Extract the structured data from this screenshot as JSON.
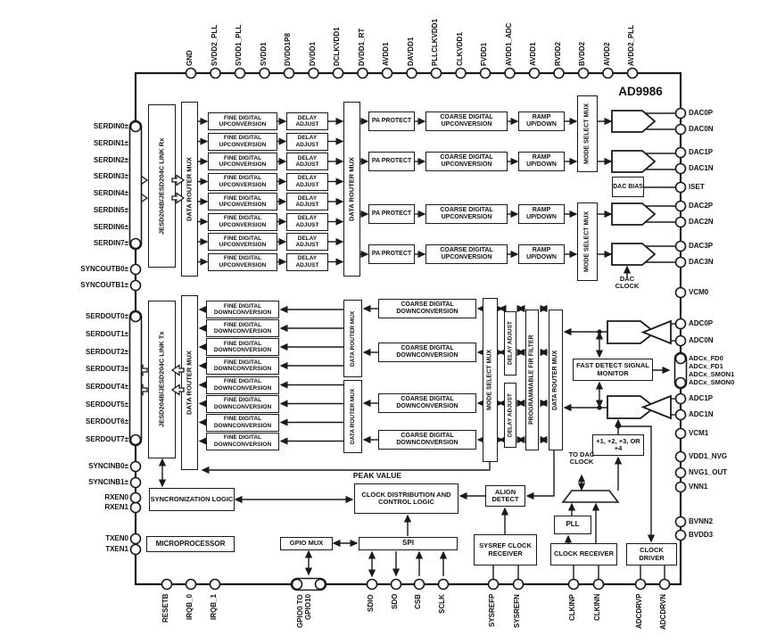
{
  "title": "AD9986",
  "pins": {
    "top": [
      "GND",
      "SVDD2_PLL",
      "SVDD1_PLL",
      "SVDD1",
      "DVDD1P8",
      "DVDD1",
      "DCLKVDD1",
      "DVDD1_RT",
      "AVDD1",
      "DAVDD1",
      "PLLCLKVDD1",
      "CLKVDD1",
      "FVDD1",
      "AVDD1_ADC",
      "AVDD1",
      "RVDD2",
      "BVDD2",
      "AVDD2",
      "AVDD2_PLL"
    ],
    "left_serdin": [
      "SERDIN0±",
      "SERDIN1±",
      "SERDIN2±",
      "SERDIN3±",
      "SERDIN4±",
      "SERDIN5±",
      "SERDIN6±",
      "SERDIN7±"
    ],
    "left_syncout": [
      "SYNCOUTB0±",
      "SYNCOUTB1±"
    ],
    "left_serdout": [
      "SERDOUT0±",
      "SERDOUT1±",
      "SERDOUT2±",
      "SERDOUT3±",
      "SERDOUT4±",
      "SERDOUT5±",
      "SERDOUT6±",
      "SERDOUT7±"
    ],
    "left_syncin": [
      "SYNCINB0±",
      "SYNCINB1±"
    ],
    "left_rxen": [
      "RXEN0",
      "RXEN1"
    ],
    "left_txen": [
      "TXEN0",
      "TXEN1"
    ],
    "bottom": [
      "RESETB",
      "IRQB_0",
      "IRQB_1",
      "GPIO0 TO GPIO10",
      "SDIO",
      "SDO",
      "CSB",
      "SCLK",
      "SYSREFP",
      "SYSREFN",
      "CLKINP",
      "CLKINN",
      "ADCDRVP",
      "ADCDRVN"
    ],
    "right_dac": [
      "DAC0P",
      "DAC0N",
      "DAC1P",
      "DAC1N",
      "ISET",
      "DAC2P",
      "DAC2N",
      "DAC3P",
      "DAC3N",
      "VCM0"
    ],
    "right_adc0": [
      "ADC0P",
      "ADC0N"
    ],
    "right_fd": [
      "ADCx_FD0",
      "ADCx_FD1",
      "ADCx_SMON1",
      "ADCx_SMON0"
    ],
    "right_adc1": [
      "ADC1P",
      "ADC1N"
    ],
    "right_misc": [
      "VCM1",
      "VDD1_NVG",
      "NVG1_OUT",
      "VNN1",
      "BVNN2",
      "BVDD3"
    ]
  },
  "blocks": {
    "jesd_rx": "JESD204B/JESD204C LINK Rx",
    "jesd_tx": "JESD204B/JESD204C LINK Tx",
    "data_router_mux": "DATA ROUTER MUX",
    "fine_duc": "FINE DIGITAL UPCONVERSION",
    "delay_adjust": "DELAY ADJUST",
    "pa_protect": "PA PROTECT",
    "coarse_duc": "COARSE DIGITAL UPCONVERSION",
    "ramp": "RAMP UP/DOWN",
    "mode_select_mux": "MODE SELECT MUX",
    "dac": [
      "DAC0",
      "DAC1",
      "DAC2",
      "DAC3"
    ],
    "dac_bias": "DAC BIAS",
    "fine_ddc": "FINE DIGITAL DOWNCONVERSION",
    "coarse_ddc": "COARSE DIGITAL DOWNCONVERSION",
    "fir": "PROGRAMMABLE FIR FILTER",
    "adc": [
      "ADC0",
      "ADC1"
    ],
    "fast_detect": "FAST DETECT SIGNAL MONITOR",
    "divider": "+1, +2, +3, OR +4",
    "pll": "PLL",
    "clock_receiver": "CLOCK RECEIVER",
    "clock_driver": "CLOCK DRIVER",
    "sysref_receiver": "SYSREF CLOCK RECEIVER",
    "spi": "SPI",
    "gpio_mux": "GPIO MUX",
    "microprocessor": "MICROPROCESSOR",
    "sync_logic": "SYNCRONIZATION LOGIC",
    "clock_dist": "CLOCK DISTRIBUTION AND CONTROL LOGIC",
    "align_detect": "ALIGN DETECT"
  },
  "labels": {
    "peak_value": "PEAK VALUE",
    "to_dac_clock": "TO DAC CLOCK",
    "dac_clock": "DAC CLOCK"
  },
  "colors": {
    "line": "#1a1a1a",
    "background": "#ffffff"
  }
}
